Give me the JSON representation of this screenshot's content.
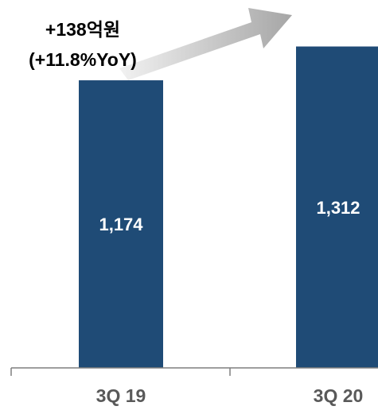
{
  "chart_data": {
    "type": "bar",
    "categories": [
      "3Q 19",
      "3Q 20"
    ],
    "values": [
      1174,
      1312
    ],
    "value_labels": [
      "1,174",
      "1,312"
    ],
    "title": "",
    "xlabel": "",
    "ylabel": "",
    "ylim": [
      0,
      1400
    ],
    "grid": false,
    "legend": "none",
    "annotation": {
      "line1": "+138억원",
      "line2": "(+11.8%YoY)",
      "arrow": "up-right, from first bar toward second bar"
    },
    "colors": {
      "bar": "#1f4b76",
      "bar_label": "#ffffff",
      "tick_label": "#595959",
      "axis": "#7f7f7f",
      "arrow_start": "#f2f2f2",
      "arrow_end": "#a6a6a6"
    }
  }
}
